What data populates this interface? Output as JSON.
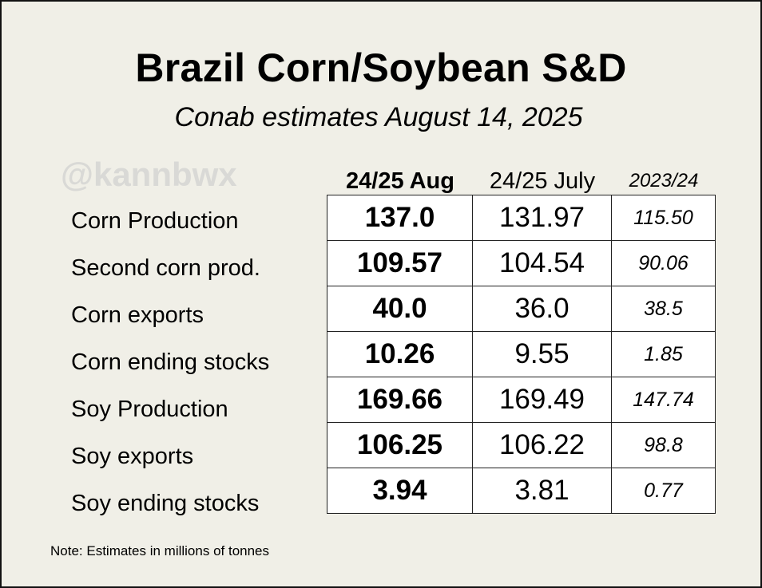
{
  "title": "Brazil Corn/Soybean S&D",
  "subtitle": "Conab estimates August 14, 2025",
  "watermark": "@kannbwx",
  "note": "Note: Estimates in millions of tonnes",
  "chart_data": {
    "type": "table",
    "title": "Brazil Corn/Soybean S&D",
    "subtitle": "Conab estimates August 14, 2025",
    "columns": [
      "24/25 Aug",
      "24/25 July",
      "2023/24"
    ],
    "rows": [
      {
        "label": "Corn Production",
        "values": [
          "137.0",
          "131.97",
          "115.50"
        ]
      },
      {
        "label": "Second corn prod.",
        "values": [
          "109.57",
          "104.54",
          "90.06"
        ]
      },
      {
        "label": "Corn exports",
        "values": [
          "40.0",
          "36.0",
          "38.5"
        ]
      },
      {
        "label": "Corn ending stocks",
        "values": [
          "10.26",
          "9.55",
          "1.85"
        ]
      },
      {
        "label": "Soy Production",
        "values": [
          "169.66",
          "169.49",
          "147.74"
        ]
      },
      {
        "label": "Soy exports",
        "values": [
          "106.25",
          "106.22",
          "98.8"
        ]
      },
      {
        "label": "Soy ending stocks",
        "values": [
          "3.94",
          "3.81",
          "0.77"
        ]
      }
    ]
  }
}
